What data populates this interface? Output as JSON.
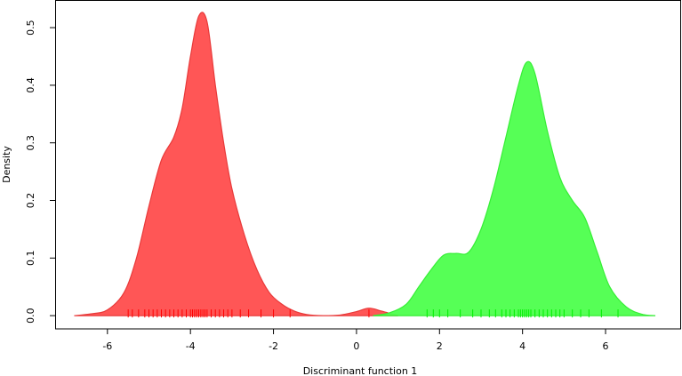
{
  "chart_data": {
    "type": "density",
    "x_label": "Discriminant function 1",
    "y_label": "Density",
    "xlim": [
      -7.26,
      7.82
    ],
    "ylim": [
      -0.023,
      0.548
    ],
    "xticks": [
      -6,
      -4,
      -2,
      0,
      2,
      4,
      6
    ],
    "yticks": [
      {
        "value": 0,
        "label": "0.0"
      },
      0.1,
      0.2,
      0.3,
      0.4,
      0.5
    ],
    "series": [
      {
        "color": "#ff4d4d",
        "line_color": "#e83a3a",
        "rug_color": "#ff0000",
        "x": [
          -6.8,
          -6.4,
          -6.0,
          -5.6,
          -5.3,
          -5.0,
          -4.7,
          -4.4,
          -4.2,
          -4.0,
          -3.8,
          -3.6,
          -3.4,
          -3.2,
          -3.0,
          -2.7,
          -2.4,
          -2.1,
          -1.8,
          -1.5,
          -1.2,
          -0.8,
          -0.4,
          0.0,
          0.3,
          0.6,
          1.0
        ],
        "values": [
          0.0,
          0.003,
          0.01,
          0.04,
          0.1,
          0.19,
          0.27,
          0.31,
          0.36,
          0.45,
          0.52,
          0.51,
          0.4,
          0.3,
          0.22,
          0.14,
          0.08,
          0.04,
          0.02,
          0.008,
          0.002,
          0.0,
          0.001,
          0.007,
          0.013,
          0.008,
          0.0
        ],
        "rug": [
          -5.5,
          -5.4,
          -5.25,
          -5.1,
          -5.0,
          -4.9,
          -4.8,
          -4.7,
          -4.6,
          -4.5,
          -4.4,
          -4.3,
          -4.2,
          -4.1,
          -4.0,
          -3.95,
          -3.9,
          -3.85,
          -3.8,
          -3.75,
          -3.7,
          -3.65,
          -3.6,
          -3.5,
          -3.4,
          -3.3,
          -3.2,
          -3.1,
          -3.0,
          -2.8,
          -2.6,
          -2.3,
          -2.0,
          -1.6,
          0.3
        ]
      },
      {
        "color": "#4dff4d",
        "line_color": "#36ee36",
        "rug_color": "#00ee00",
        "x": [
          0.4,
          0.8,
          1.2,
          1.5,
          1.8,
          2.1,
          2.4,
          2.7,
          3.0,
          3.3,
          3.6,
          3.9,
          4.1,
          4.3,
          4.6,
          4.9,
          5.2,
          5.5,
          5.8,
          6.1,
          6.5,
          6.9,
          7.2
        ],
        "values": [
          0.0,
          0.005,
          0.02,
          0.05,
          0.08,
          0.105,
          0.108,
          0.11,
          0.15,
          0.22,
          0.31,
          0.4,
          0.44,
          0.42,
          0.32,
          0.24,
          0.2,
          0.17,
          0.11,
          0.05,
          0.015,
          0.002,
          0.0
        ],
        "rug": [
          1.7,
          1.85,
          2.0,
          2.2,
          2.5,
          2.8,
          3.0,
          3.2,
          3.35,
          3.5,
          3.6,
          3.7,
          3.8,
          3.9,
          3.95,
          4.0,
          4.05,
          4.1,
          4.15,
          4.2,
          4.3,
          4.4,
          4.5,
          4.6,
          4.7,
          4.8,
          4.9,
          5.0,
          5.2,
          5.4,
          5.6,
          5.9,
          6.3
        ]
      }
    ]
  }
}
